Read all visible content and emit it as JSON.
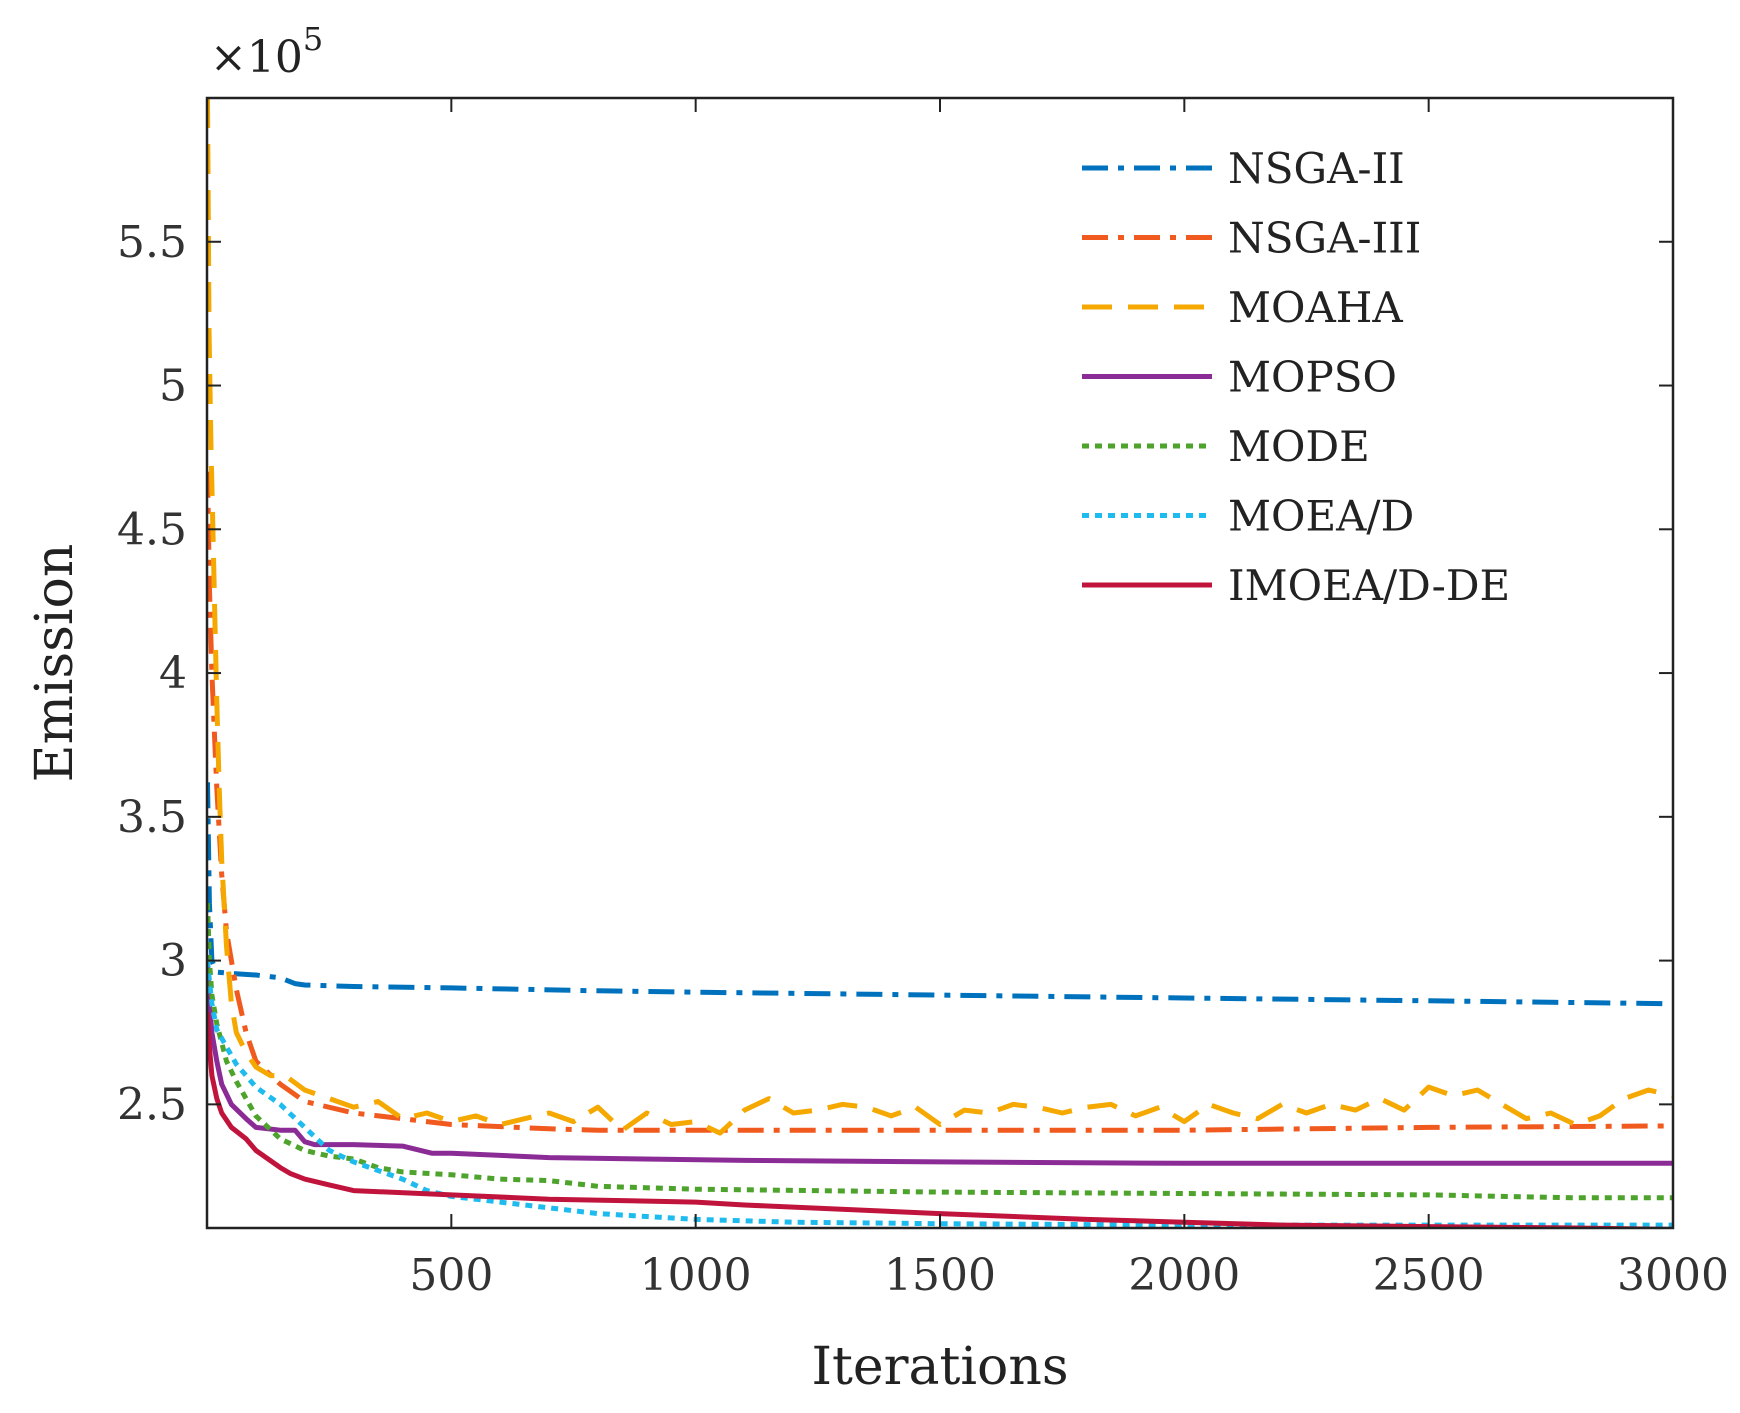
{
  "chart_data": {
    "type": "line",
    "title": "",
    "xlabel": "Iterations",
    "ylabel": "Emission",
    "y_multiplier_label": "×10",
    "y_multiplier_exponent": "5",
    "xlim": [
      0,
      3000
    ],
    "ylim": [
      2.07,
      6.0
    ],
    "x_ticks": [
      500,
      1000,
      1500,
      2000,
      2500,
      3000
    ],
    "x_tick_labels": [
      "500",
      "1000",
      "1500",
      "2000",
      "2500",
      "3000"
    ],
    "y_ticks": [
      2.5,
      3,
      3.5,
      4,
      4.5,
      5,
      5.5
    ],
    "y_tick_labels": [
      "2.5",
      "3",
      "3.5",
      "4",
      "4.5",
      "5",
      "5.5"
    ],
    "grid": false,
    "legend_position": "top-right",
    "series": [
      {
        "name": "NSGA-II",
        "color": "#0072BD",
        "style": "dashdot",
        "x": [
          1,
          5,
          10,
          20,
          50,
          100,
          150,
          180,
          200,
          300,
          500,
          800,
          1000,
          1500,
          2000,
          2500,
          3000
        ],
        "y": [
          3.62,
          3.2,
          3.0,
          2.96,
          2.955,
          2.95,
          2.94,
          2.92,
          2.915,
          2.91,
          2.905,
          2.895,
          2.89,
          2.88,
          2.87,
          2.86,
          2.85
        ]
      },
      {
        "name": "NSGA-III",
        "color": "#F05A1E",
        "style": "dashdot",
        "x": [
          1,
          5,
          10,
          15,
          20,
          30,
          40,
          60,
          80,
          100,
          150,
          200,
          300,
          400,
          500,
          700,
          800,
          1000,
          1500,
          2000,
          2500,
          3000
        ],
        "y": [
          4.7,
          4.3,
          4.0,
          3.8,
          3.6,
          3.3,
          3.1,
          2.9,
          2.75,
          2.65,
          2.57,
          2.51,
          2.47,
          2.45,
          2.43,
          2.415,
          2.41,
          2.41,
          2.41,
          2.41,
          2.42,
          2.425
        ]
      },
      {
        "name": "MOAHA",
        "color": "#F5A800",
        "style": "dashed",
        "x": [
          1,
          4,
          8,
          12,
          16,
          20,
          25,
          30,
          40,
          50,
          60,
          80,
          100,
          130,
          160,
          200,
          250,
          300,
          350,
          400,
          450,
          500,
          550,
          600,
          650,
          700,
          750,
          800,
          850,
          900,
          950,
          1000,
          1050,
          1100,
          1150,
          1200,
          1250,
          1300,
          1350,
          1400,
          1450,
          1500,
          1550,
          1600,
          1650,
          1700,
          1750,
          1800,
          1850,
          1900,
          1950,
          2000,
          2050,
          2100,
          2150,
          2200,
          2250,
          2300,
          2350,
          2400,
          2450,
          2500,
          2550,
          2600,
          2650,
          2700,
          2750,
          2800,
          2850,
          2900,
          2950,
          3000
        ],
        "y": [
          6.0,
          5.2,
          4.8,
          4.5,
          4.2,
          3.9,
          3.6,
          3.35,
          3.05,
          2.85,
          2.75,
          2.68,
          2.63,
          2.6,
          2.6,
          2.55,
          2.52,
          2.49,
          2.51,
          2.45,
          2.47,
          2.44,
          2.46,
          2.43,
          2.45,
          2.47,
          2.44,
          2.49,
          2.41,
          2.47,
          2.43,
          2.44,
          2.4,
          2.48,
          2.52,
          2.47,
          2.48,
          2.5,
          2.49,
          2.46,
          2.49,
          2.43,
          2.48,
          2.47,
          2.5,
          2.49,
          2.47,
          2.49,
          2.5,
          2.46,
          2.49,
          2.44,
          2.5,
          2.47,
          2.45,
          2.5,
          2.47,
          2.5,
          2.48,
          2.52,
          2.48,
          2.56,
          2.53,
          2.55,
          2.5,
          2.45,
          2.47,
          2.43,
          2.46,
          2.52,
          2.55,
          2.53
        ]
      },
      {
        "name": "MOPSO",
        "color": "#8B2B96",
        "style": "solid",
        "x": [
          1,
          5,
          10,
          20,
          30,
          50,
          80,
          100,
          150,
          180,
          200,
          220,
          300,
          400,
          460,
          500,
          700,
          1100,
          1500,
          2000,
          2500,
          3000
        ],
        "y": [
          3.0,
          2.85,
          2.75,
          2.65,
          2.57,
          2.5,
          2.45,
          2.42,
          2.41,
          2.41,
          2.37,
          2.36,
          2.36,
          2.355,
          2.33,
          2.33,
          2.315,
          2.305,
          2.3,
          2.295,
          2.295,
          2.295
        ]
      },
      {
        "name": "MODE",
        "color": "#4DA32B",
        "style": "dotted",
        "x": [
          1,
          5,
          10,
          20,
          40,
          60,
          80,
          100,
          150,
          200,
          250,
          300,
          350,
          400,
          500,
          600,
          700,
          800,
          1000,
          1500,
          2000,
          2500,
          2800,
          3000
        ],
        "y": [
          3.2,
          3.0,
          2.88,
          2.78,
          2.65,
          2.58,
          2.52,
          2.46,
          2.38,
          2.34,
          2.32,
          2.31,
          2.28,
          2.265,
          2.255,
          2.24,
          2.235,
          2.215,
          2.205,
          2.195,
          2.19,
          2.185,
          2.175,
          2.175
        ]
      },
      {
        "name": "MOEA/D",
        "color": "#1EBBEE",
        "style": "dotted",
        "x": [
          1,
          5,
          10,
          20,
          40,
          60,
          80,
          100,
          150,
          200,
          250,
          300,
          400,
          450,
          500,
          600,
          800,
          1000,
          1200,
          1500,
          2000,
          2500,
          3000
        ],
        "y": [
          3.0,
          2.93,
          2.85,
          2.76,
          2.7,
          2.64,
          2.6,
          2.56,
          2.5,
          2.42,
          2.34,
          2.3,
          2.24,
          2.2,
          2.18,
          2.16,
          2.12,
          2.1,
          2.09,
          2.085,
          2.08,
          2.08,
          2.08
        ]
      },
      {
        "name": "IMOEA/D-DE",
        "color": "#C0143C",
        "style": "solid",
        "x": [
          1,
          5,
          10,
          20,
          30,
          50,
          80,
          100,
          150,
          170,
          200,
          250,
          300,
          500,
          700,
          1000,
          1100,
          1500,
          1800,
          2000,
          2200,
          2500,
          2800,
          3000
        ],
        "y": [
          2.82,
          2.7,
          2.6,
          2.52,
          2.47,
          2.42,
          2.38,
          2.34,
          2.28,
          2.26,
          2.24,
          2.22,
          2.2,
          2.185,
          2.17,
          2.16,
          2.15,
          2.12,
          2.1,
          2.09,
          2.08,
          2.075,
          2.07,
          2.065
        ]
      }
    ]
  }
}
